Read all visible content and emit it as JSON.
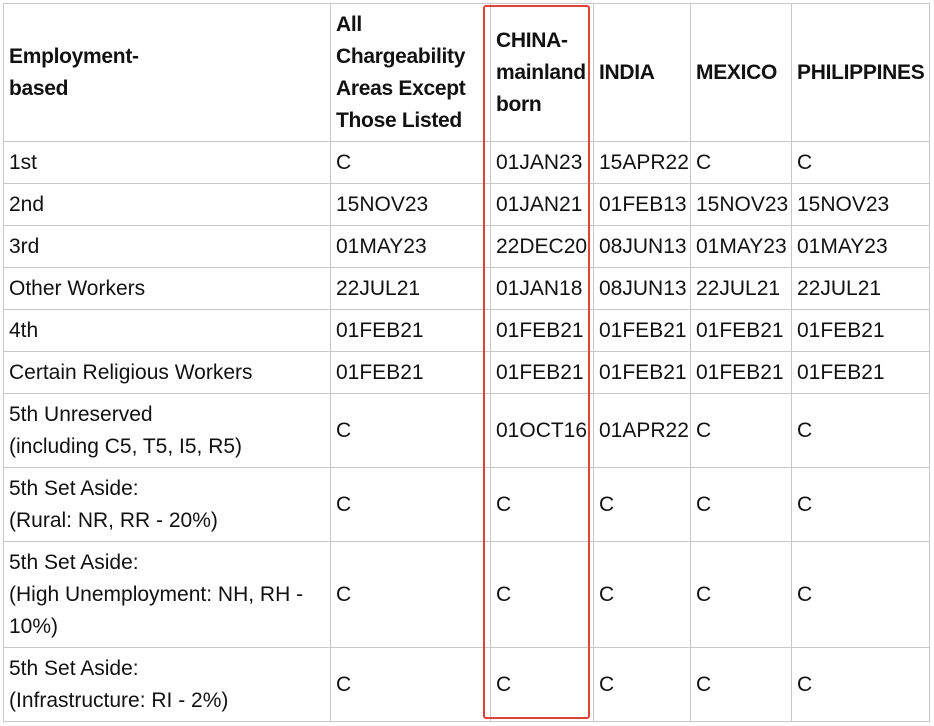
{
  "headers": [
    [
      "Employment-",
      "based"
    ],
    [
      "All",
      "Chargeability",
      "Areas Except",
      "Those Listed"
    ],
    [
      "CHINA-",
      "mainland",
      "born"
    ],
    [
      "INDIA"
    ],
    [
      "MEXICO"
    ],
    [
      "PHILIPPINES"
    ]
  ],
  "rows": [
    {
      "category": [
        "1st"
      ],
      "values": [
        "C",
        "01JAN23",
        "15APR22",
        "C",
        "C"
      ]
    },
    {
      "category": [
        "2nd"
      ],
      "values": [
        "15NOV23",
        "01JAN21",
        "01FEB13",
        "15NOV23",
        "15NOV23"
      ]
    },
    {
      "category": [
        "3rd"
      ],
      "values": [
        "01MAY23",
        "22DEC20",
        "08JUN13",
        "01MAY23",
        "01MAY23"
      ]
    },
    {
      "category": [
        "Other Workers"
      ],
      "values": [
        "22JUL21",
        "01JAN18",
        "08JUN13",
        "22JUL21",
        "22JUL21"
      ]
    },
    {
      "category": [
        "4th"
      ],
      "values": [
        "01FEB21",
        "01FEB21",
        "01FEB21",
        "01FEB21",
        "01FEB21"
      ]
    },
    {
      "category": [
        "Certain Religious Workers"
      ],
      "values": [
        "01FEB21",
        "01FEB21",
        "01FEB21",
        "01FEB21",
        "01FEB21"
      ]
    },
    {
      "category": [
        "5th Unreserved",
        "(including C5, T5, I5, R5)"
      ],
      "values": [
        "C",
        "01OCT16",
        "01APR22",
        "C",
        "C"
      ]
    },
    {
      "category": [
        "5th Set Aside:",
        "(Rural: NR, RR - 20%)"
      ],
      "values": [
        "C",
        "C",
        "C",
        "C",
        "C"
      ]
    },
    {
      "category": [
        "5th Set Aside:",
        "(High Unemployment: NH, RH -",
        "10%)"
      ],
      "values": [
        "C",
        "C",
        "C",
        "C",
        "C"
      ]
    },
    {
      "category": [
        "5th Set Aside:",
        "(Infrastructure: RI - 2%)"
      ],
      "values": [
        "C",
        "C",
        "C",
        "C",
        "C"
      ]
    }
  ],
  "highlight_color": "#e0413a"
}
